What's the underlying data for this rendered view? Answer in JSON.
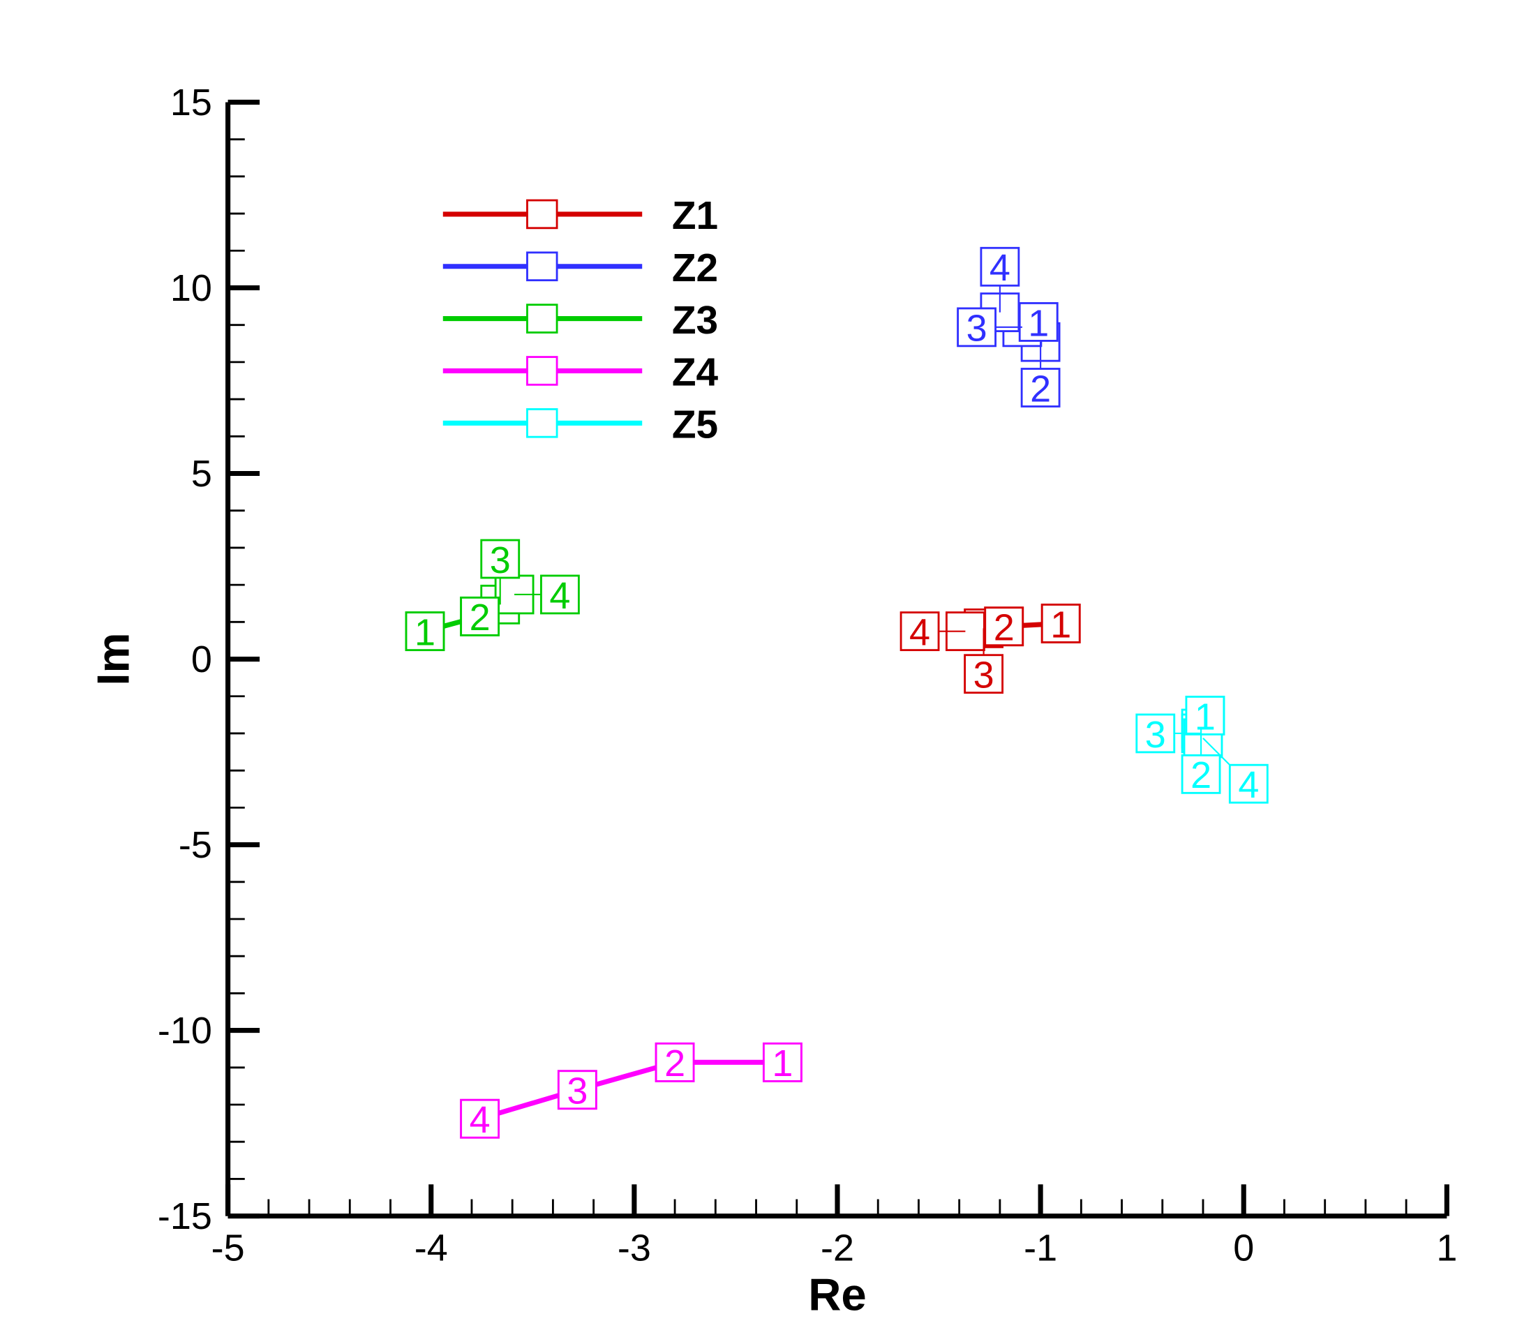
{
  "chart_data": {
    "type": "line",
    "title": "",
    "xlabel": "Re",
    "ylabel": "Im",
    "xlim": [
      -5,
      1
    ],
    "ylim": [
      -15,
      15
    ],
    "xticks": [
      -5,
      -4,
      -3,
      -2,
      -1,
      0,
      1
    ],
    "xtick_labels": [
      "-5",
      "-4",
      "-3",
      "-2",
      "-1",
      "0",
      "1"
    ],
    "yticks": [
      -15,
      -10,
      -5,
      0,
      5,
      10,
      15
    ],
    "ytick_labels": [
      "-15",
      "-10",
      "-5",
      "0",
      "5",
      "10",
      "15"
    ],
    "grid": false,
    "legend_position": "top-left",
    "point_labels": [
      "1",
      "2",
      "3",
      "4"
    ],
    "series": [
      {
        "name": "Z1",
        "color": "#d40000",
        "x": [
          -0.9,
          -1.18,
          -1.28,
          -1.37
        ],
        "y": [
          0.96,
          0.88,
          0.83,
          0.75
        ]
      },
      {
        "name": "Z2",
        "color": "#3030ff",
        "x": [
          -1.01,
          -1.0,
          -1.09,
          -1.2
        ],
        "y": [
          9.08,
          8.54,
          8.94,
          9.34
        ]
      },
      {
        "name": "Z3",
        "color": "#00cc00",
        "x": [
          -4.03,
          -3.76,
          -3.66,
          -3.59
        ],
        "y": [
          0.75,
          1.15,
          1.47,
          1.74
        ]
      },
      {
        "name": "Z4",
        "color": "#ff00ff",
        "x": [
          -2.27,
          -2.8,
          -3.28,
          -3.76
        ],
        "y": [
          -10.86,
          -10.86,
          -11.6,
          -12.38
        ]
      },
      {
        "name": "Z5",
        "color": "#00ffff",
        "x": [
          -0.19,
          -0.21,
          -0.21,
          -0.2
        ],
        "y": [
          -1.52,
          -1.87,
          -2.0,
          -2.13
        ]
      }
    ]
  }
}
